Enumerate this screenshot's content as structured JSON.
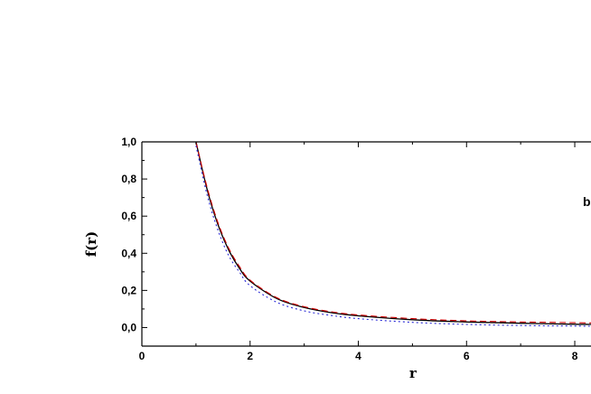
{
  "chart_data": {
    "type": "line",
    "title": "",
    "xlabel": "r",
    "ylabel": "f(r)",
    "panel_label": "b",
    "xlim": [
      0,
      8.3
    ],
    "ylim": [
      -0.1,
      1.0
    ],
    "x_ticks": [
      "0",
      "2",
      "4",
      "6",
      "8"
    ],
    "y_ticks": [
      "0,0",
      "0,2",
      "0,4",
      "0,6",
      "0,8",
      "1,0"
    ],
    "grid": false,
    "legend": "none",
    "series": [
      {
        "color": "#000000",
        "style": "solid",
        "x": [
          1.0,
          1.2,
          1.4,
          1.6,
          1.8,
          2.0,
          2.5,
          3.0,
          3.5,
          4.0,
          5.0,
          6.0,
          7.0,
          8.0,
          8.3
        ],
        "y": [
          1.0,
          0.75,
          0.56,
          0.42,
          0.32,
          0.25,
          0.155,
          0.108,
          0.08,
          0.063,
          0.042,
          0.03,
          0.023,
          0.018,
          0.017
        ]
      },
      {
        "color": "#cc0000",
        "style": "dashed",
        "x": [
          1.0,
          1.2,
          1.4,
          1.6,
          1.8,
          2.0,
          2.5,
          3.0,
          3.5,
          4.0,
          5.0,
          6.0,
          7.0,
          8.0,
          8.3
        ],
        "y": [
          1.0,
          0.76,
          0.57,
          0.43,
          0.33,
          0.255,
          0.16,
          0.112,
          0.085,
          0.068,
          0.048,
          0.036,
          0.03,
          0.026,
          0.025
        ]
      },
      {
        "color": "#2a2ad8",
        "style": "dotted",
        "x": [
          1.0,
          1.2,
          1.4,
          1.6,
          1.8,
          2.0,
          2.5,
          3.0,
          3.5,
          4.0,
          5.0,
          6.0,
          7.0,
          8.0,
          8.3
        ],
        "y": [
          0.98,
          0.72,
          0.53,
          0.39,
          0.3,
          0.225,
          0.135,
          0.09,
          0.065,
          0.048,
          0.028,
          0.017,
          0.011,
          0.008,
          0.007
        ]
      }
    ]
  }
}
